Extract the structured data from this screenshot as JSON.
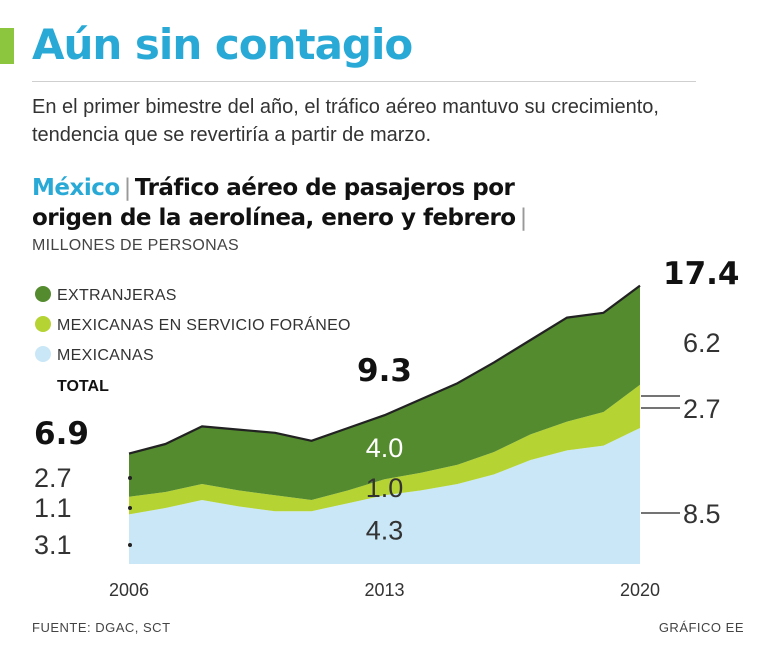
{
  "header": {
    "title": "Aún sin contagio",
    "subtitle_line1": "En el primer bimestre del año, el tráfico aéreo mantuvo su crecimiento,",
    "subtitle_line2": "tendencia que se revertiría a partir de marzo.",
    "country": "México",
    "headline_line1": "Tráfico aéreo de pasajeros por",
    "headline_line2": "origen de la aerolínea, enero y febrero",
    "units": "MILLONES DE PERSONAS"
  },
  "footer": {
    "source": "FUENTE: DGAC, SCT",
    "credit": "GRÁFICO EE"
  },
  "colors": {
    "accent": "#8cc63f",
    "title": "#29a9d6",
    "extranjeras": "#548b2e",
    "mexicanas_foraneo": "#b5d333",
    "mexicanas": "#c9e7f6",
    "outline": "#222222"
  },
  "chart_data": {
    "type": "area",
    "stacked": true,
    "x": [
      2006,
      2007,
      2008,
      2009,
      2010,
      2011,
      2012,
      2013,
      2014,
      2015,
      2016,
      2017,
      2018,
      2019,
      2020
    ],
    "x_tick_labels": [
      "2006",
      "2013",
      "2020"
    ],
    "ylim": [
      0,
      19
    ],
    "legend_position": "top-left",
    "series": [
      {
        "name": "MEXICANAS",
        "key": "mexicanas",
        "values": [
          3.1,
          3.5,
          4.0,
          3.6,
          3.3,
          3.3,
          3.8,
          4.3,
          4.6,
          5.0,
          5.6,
          6.5,
          7.1,
          7.4,
          8.5
        ]
      },
      {
        "name": "MEXICANAS EN SERVICIO FORÁNEO",
        "key": "mexicanas_foraneo",
        "values": [
          1.1,
          1.0,
          1.0,
          1.0,
          1.0,
          0.7,
          0.8,
          1.0,
          1.1,
          1.2,
          1.4,
          1.6,
          1.8,
          2.1,
          2.7
        ]
      },
      {
        "name": "EXTRANJERAS",
        "key": "extranjeras",
        "values": [
          2.7,
          3.0,
          3.6,
          3.8,
          3.9,
          3.7,
          3.9,
          4.0,
          4.6,
          5.1,
          5.6,
          5.9,
          6.5,
          6.2,
          6.2
        ]
      }
    ],
    "legend": [
      {
        "label": "EXTRANJERAS",
        "key": "extranjeras"
      },
      {
        "label": "MEXICANAS EN SERVICIO FORÁNEO",
        "key": "mexicanas_foraneo"
      },
      {
        "label": "MEXICANAS",
        "key": "mexicanas"
      }
    ],
    "total_label": "TOTAL",
    "totals": [
      {
        "year": 2006,
        "label": "6.9"
      },
      {
        "year": 2013,
        "label": "9.3"
      },
      {
        "year": 2020,
        "label": "17.4"
      }
    ],
    "annotations": [
      {
        "year": 2006,
        "series": "mexicanas",
        "label": "3.1"
      },
      {
        "year": 2006,
        "series": "mexicanas_foraneo",
        "label": "1.1"
      },
      {
        "year": 2006,
        "series": "extranjeras",
        "label": "2.7"
      },
      {
        "year": 2013,
        "series": "mexicanas",
        "label": "4.3"
      },
      {
        "year": 2013,
        "series": "mexicanas_foraneo",
        "label": "1.0"
      },
      {
        "year": 2013,
        "series": "extranjeras",
        "label": "4.0"
      },
      {
        "year": 2020,
        "series": "mexicanas",
        "label": "8.5"
      },
      {
        "year": 2020,
        "series": "mexicanas_foraneo",
        "label": "2.7"
      },
      {
        "year": 2020,
        "series": "extranjeras",
        "label": "6.2"
      }
    ]
  }
}
